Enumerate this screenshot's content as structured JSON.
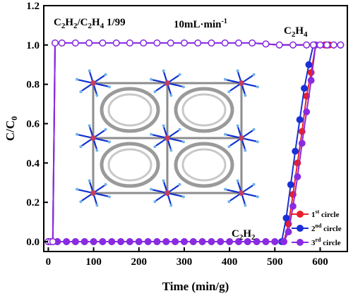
{
  "chart_data": {
    "type": "line",
    "xlabel": "Time (min/g)",
    "ylabel": "C/C",
    "ylabel_sub": "0",
    "xlim": [
      -10,
      660
    ],
    "ylim": [
      -0.05,
      1.2
    ],
    "x_ticks": [
      0,
      100,
      200,
      300,
      400,
      500,
      600
    ],
    "y_ticks": [
      0.0,
      0.2,
      0.4,
      0.6,
      0.8,
      1.0,
      1.2
    ],
    "x_tick_labels": [
      "0",
      "100",
      "200",
      "300",
      "400",
      "500",
      "600"
    ],
    "y_tick_labels": [
      "0.0",
      "0.2",
      "0.4",
      "0.6",
      "0.8",
      "1.0",
      "1.2"
    ],
    "grid": false,
    "legend_position": "bottom-right",
    "annotations": {
      "mixture_parts": [
        "C",
        "2",
        "H",
        "2",
        "/C",
        "2",
        "H",
        "4",
        " 1/99"
      ],
      "flow": "10mL·min",
      "flow_sup": "-1",
      "c2h4_parts": [
        "C",
        "2",
        "H",
        "4"
      ],
      "c2h2_parts": [
        "C",
        "2",
        "H",
        "2"
      ]
    },
    "series": [
      {
        "name": "1",
        "name_sup": "st",
        "name_rest": " circle",
        "color": "#e8202a",
        "c2h4": {
          "x": [
            0,
            5,
            10,
            15,
            30,
            60,
            90,
            120,
            150,
            180,
            210,
            240,
            270,
            300,
            330,
            360,
            390,
            420,
            450,
            480,
            510,
            540,
            570,
            585,
            600,
            615,
            630,
            645
          ],
          "y": [
            0,
            0,
            0,
            1.01,
            1.01,
            1.01,
            1.01,
            1.01,
            1.01,
            1.01,
            1.01,
            1.01,
            1.01,
            1.01,
            1.01,
            1.01,
            1.01,
            1.01,
            1.01,
            1.005,
            1.0,
            1.0,
            1.0,
            1.0,
            1.0,
            1.0,
            1.0,
            1.0
          ]
        },
        "c2h2": {
          "x": [
            0,
            10,
            20,
            40,
            60,
            80,
            100,
            120,
            140,
            160,
            180,
            200,
            220,
            240,
            260,
            280,
            300,
            320,
            340,
            360,
            380,
            400,
            420,
            440,
            460,
            480,
            500,
            520,
            530,
            540,
            550,
            560,
            570,
            580,
            590,
            600,
            610,
            620,
            630,
            645
          ],
          "y": [
            0,
            0,
            0,
            0,
            0,
            0,
            0,
            0,
            0,
            0,
            0,
            0,
            0,
            0,
            0,
            0,
            0,
            0,
            0,
            0,
            0,
            0,
            0,
            0,
            0,
            0,
            0,
            0,
            0.09,
            0.24,
            0.4,
            0.56,
            0.74,
            0.86,
            1.0,
            1.0,
            1.0,
            1.0,
            1.0,
            1.0
          ]
        }
      },
      {
        "name": "2",
        "name_sup": "nd",
        "name_rest": " circle",
        "color": "#1a2fd8",
        "c2h4": {
          "x": [
            0,
            5,
            10,
            15,
            30,
            60,
            90,
            120,
            150,
            180,
            210,
            240,
            270,
            300,
            330,
            360,
            390,
            420,
            450,
            480,
            510,
            540,
            570,
            585,
            600,
            615,
            630,
            645
          ],
          "y": [
            0,
            0,
            0,
            1.01,
            1.01,
            1.01,
            1.01,
            1.01,
            1.01,
            1.01,
            1.01,
            1.01,
            1.01,
            1.01,
            1.01,
            1.01,
            1.01,
            1.01,
            1.01,
            1.005,
            1.0,
            1.0,
            1.0,
            1.0,
            1.0,
            1.0,
            1.0,
            1.0
          ]
        },
        "c2h2": {
          "x": [
            0,
            10,
            20,
            40,
            60,
            80,
            100,
            120,
            140,
            160,
            180,
            200,
            220,
            240,
            260,
            280,
            300,
            320,
            340,
            360,
            380,
            400,
            420,
            440,
            460,
            480,
            500,
            515,
            525,
            535,
            545,
            555,
            565,
            575,
            585,
            600,
            615,
            630,
            645
          ],
          "y": [
            0,
            0,
            0,
            0,
            0,
            0,
            0,
            0,
            0,
            0,
            0,
            0,
            0,
            0,
            0,
            0,
            0,
            0,
            0,
            0,
            0,
            0,
            0,
            0,
            0,
            0,
            0,
            0,
            0.12,
            0.29,
            0.46,
            0.62,
            0.78,
            0.9,
            1.0,
            1.0,
            1.0,
            1.0,
            1.0
          ]
        }
      },
      {
        "name": "3",
        "name_sup": "rd",
        "name_rest": " circle",
        "color": "#8a2be2",
        "c2h4": {
          "x": [
            0,
            5,
            10,
            15,
            30,
            60,
            90,
            120,
            150,
            180,
            210,
            240,
            270,
            300,
            330,
            360,
            390,
            420,
            450,
            480,
            510,
            540,
            570,
            585,
            600,
            615,
            630,
            645
          ],
          "y": [
            0,
            0,
            0,
            1.01,
            1.01,
            1.01,
            1.01,
            1.01,
            1.01,
            1.01,
            1.01,
            1.01,
            1.01,
            1.01,
            1.01,
            1.01,
            1.01,
            1.01,
            1.01,
            1.005,
            1.0,
            1.0,
            1.0,
            1.0,
            1.0,
            1.0,
            1.0,
            1.0
          ]
        },
        "c2h2": {
          "x": [
            0,
            10,
            20,
            40,
            60,
            80,
            100,
            120,
            140,
            160,
            180,
            200,
            220,
            240,
            260,
            280,
            300,
            320,
            340,
            360,
            380,
            400,
            420,
            440,
            460,
            480,
            500,
            520,
            530,
            540,
            550,
            560,
            570,
            580,
            590,
            600,
            615,
            630,
            645
          ],
          "y": [
            0,
            0,
            0,
            0,
            0,
            0,
            0,
            0,
            0,
            0,
            0,
            0,
            0,
            0,
            0,
            0,
            0,
            0,
            0,
            0,
            0,
            0,
            0,
            0,
            0,
            0,
            0,
            0,
            0.05,
            0.18,
            0.33,
            0.5,
            0.66,
            0.82,
            1.0,
            1.0,
            1.0,
            1.0,
            1.0
          ]
        }
      }
    ]
  }
}
